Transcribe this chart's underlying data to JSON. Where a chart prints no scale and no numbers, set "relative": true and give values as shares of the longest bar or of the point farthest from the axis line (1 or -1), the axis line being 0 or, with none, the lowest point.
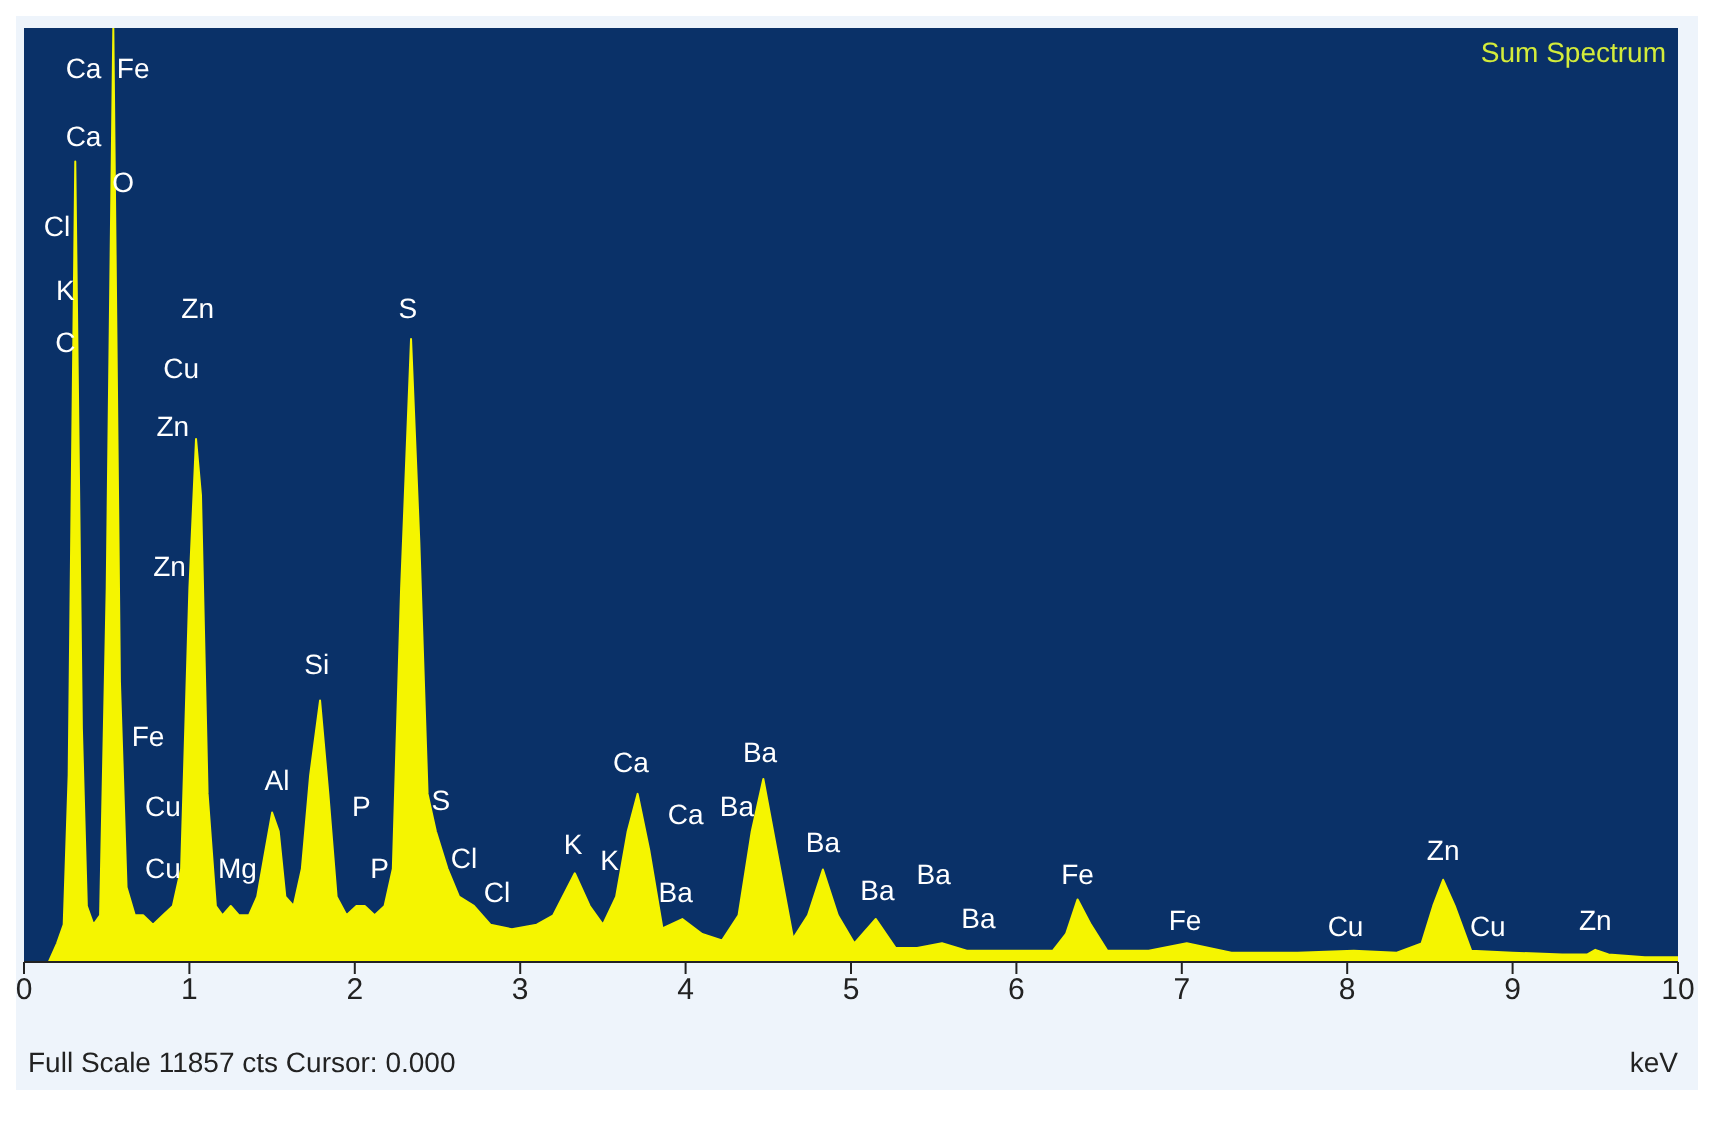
{
  "chart_data": {
    "type": "area",
    "title": "Sum Spectrum",
    "xlabel": "keV",
    "relative": true,
    "xlim": [
      0,
      10
    ],
    "xticks": [
      0,
      1,
      2,
      3,
      4,
      5,
      6,
      7,
      8,
      9,
      10
    ],
    "marker": "none",
    "x": [
      0.15,
      0.2,
      0.24,
      0.27,
      0.31,
      0.35,
      0.38,
      0.42,
      0.46,
      0.5,
      0.54,
      0.58,
      0.62,
      0.67,
      0.72,
      0.78,
      0.84,
      0.9,
      0.95,
      1.0,
      1.04,
      1.07,
      1.11,
      1.16,
      1.2,
      1.25,
      1.3,
      1.36,
      1.41,
      1.45,
      1.5,
      1.54,
      1.58,
      1.63,
      1.68,
      1.73,
      1.79,
      1.84,
      1.89,
      1.95,
      2.01,
      2.06,
      2.12,
      2.18,
      2.23,
      2.28,
      2.34,
      2.39,
      2.44,
      2.49,
      2.56,
      2.63,
      2.72,
      2.82,
      2.95,
      3.1,
      3.2,
      3.33,
      3.42,
      3.5,
      3.58,
      3.65,
      3.71,
      3.78,
      3.86,
      3.98,
      4.1,
      4.22,
      4.32,
      4.4,
      4.47,
      4.55,
      4.65,
      4.74,
      4.83,
      4.92,
      5.02,
      5.15,
      5.27,
      5.4,
      5.55,
      5.7,
      5.85,
      6.05,
      6.22,
      6.3,
      6.37,
      6.45,
      6.55,
      6.8,
      7.03,
      7.3,
      7.7,
      8.04,
      8.3,
      8.45,
      8.52,
      8.58,
      8.65,
      8.75,
      9.0,
      9.3,
      9.45,
      9.5,
      9.58,
      9.8,
      10.0
    ],
    "series": [
      {
        "color": "#f5f500",
        "values": [
          0,
          0.02,
          0.04,
          0.2,
          0.857,
          0.25,
          0.06,
          0.04,
          0.05,
          0.4,
          1.0,
          0.3,
          0.08,
          0.05,
          0.05,
          0.04,
          0.05,
          0.06,
          0.1,
          0.4,
          0.56,
          0.5,
          0.18,
          0.06,
          0.05,
          0.06,
          0.05,
          0.05,
          0.07,
          0.11,
          0.16,
          0.14,
          0.07,
          0.06,
          0.1,
          0.2,
          0.28,
          0.18,
          0.07,
          0.05,
          0.06,
          0.06,
          0.05,
          0.06,
          0.1,
          0.4,
          0.667,
          0.45,
          0.18,
          0.14,
          0.1,
          0.07,
          0.06,
          0.04,
          0.035,
          0.04,
          0.05,
          0.095,
          0.06,
          0.04,
          0.07,
          0.14,
          0.18,
          0.12,
          0.036,
          0.046,
          0.03,
          0.023,
          0.05,
          0.14,
          0.196,
          0.12,
          0.025,
          0.05,
          0.099,
          0.05,
          0.02,
          0.046,
          0.015,
          0.015,
          0.02,
          0.012,
          0.012,
          0.012,
          0.012,
          0.03,
          0.067,
          0.04,
          0.012,
          0.012,
          0.02,
          0.01,
          0.01,
          0.012,
          0.01,
          0.02,
          0.06,
          0.088,
          0.06,
          0.012,
          0.01,
          0.008,
          0.008,
          0.013,
          0.008,
          0.005,
          0.005
        ]
      }
    ],
    "annotations": [
      "Full Scale 11857 cts Cursor: 0.000",
      "Ca",
      "Fe",
      "Ca",
      "O",
      "Cl",
      "K",
      "C",
      "Zn",
      "Cu",
      "Zn",
      "Zn",
      "Fe",
      "Cu",
      "Cu",
      "Mg",
      "Al",
      "Si",
      "P",
      "P",
      "S",
      "S",
      "Cl",
      "Cl",
      "K",
      "K",
      "Ca",
      "Ca",
      "Ba",
      "Ba",
      "Ba",
      "Ba",
      "Ba",
      "Ba",
      "Ba",
      "Fe",
      "Fe",
      "Cu",
      "Zn",
      "Cu",
      "Zn"
    ]
  }
}
